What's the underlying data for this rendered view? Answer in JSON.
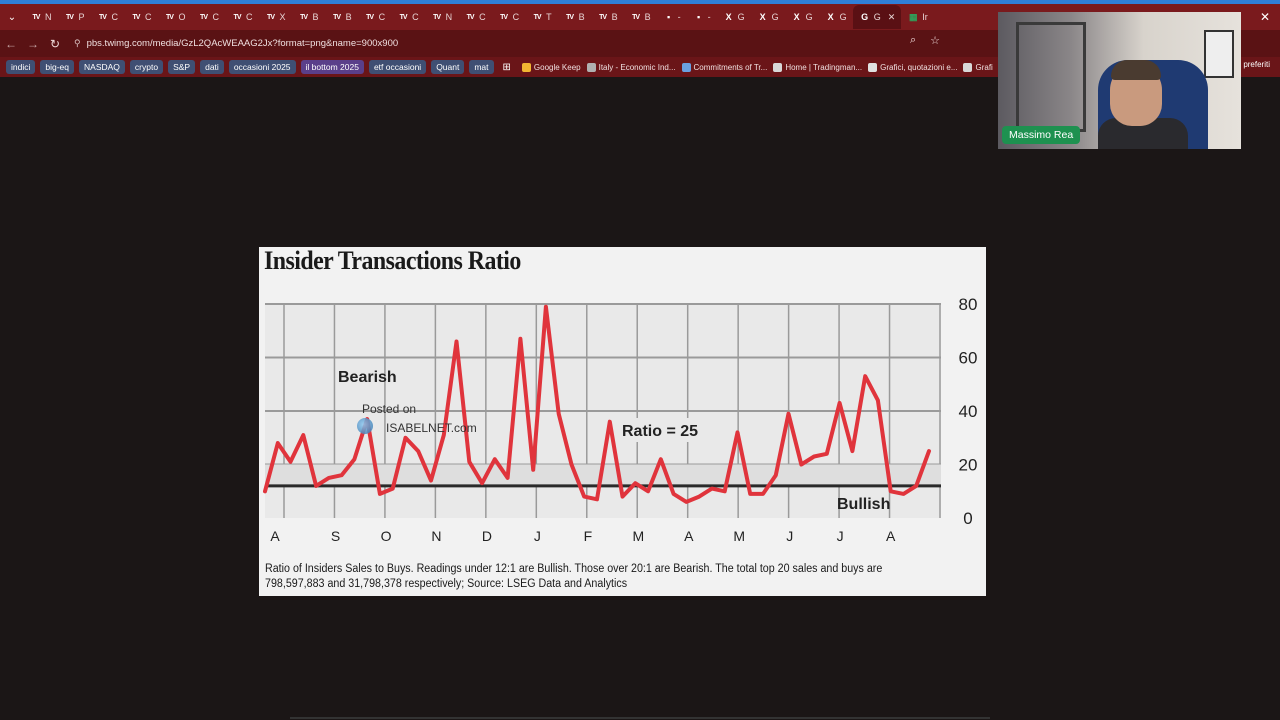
{
  "browser": {
    "tabs": [
      "N",
      "P",
      "C",
      "C",
      "O",
      "C",
      "C",
      "X",
      "B",
      "B",
      "C",
      "C",
      "N",
      "C",
      "C",
      "T",
      "B",
      "B",
      "B",
      "-",
      "-",
      "G",
      "G",
      "G",
      "G",
      "G",
      "Ir"
    ],
    "tab_icons": [
      "tv",
      "tv",
      "tv",
      "tv",
      "tv",
      "tv",
      "tv",
      "tv",
      "tv",
      "tv",
      "tv",
      "tv",
      "tv",
      "tv",
      "tv",
      "tv",
      "tv",
      "tv",
      "tv",
      "img",
      "img",
      "x",
      "x",
      "x",
      "x",
      "g",
      "sheet"
    ],
    "active_tab_index": 25,
    "url": "pbs.twimg.com/media/GzL2QAcWEAAG2Jx?format=png&name=900x900",
    "bookmark_folders": [
      "indici",
      "big-eq",
      "NASDAQ",
      "crypto",
      "S&P",
      "dati",
      "occasioni 2025",
      "il bottom 2025",
      "etf occasioni",
      "Quant",
      "mat"
    ],
    "bookmark_links": [
      "Google Keep",
      "Italy - Economic Ind...",
      "Commitments of Tr...",
      "Home | Tradingman...",
      "Grafici, quotazioni e...",
      "Grafi"
    ],
    "bookmarks_right": "preferiti"
  },
  "webcam": {
    "name": "Massimo Rea"
  },
  "chart_image": {
    "title": "Insider Transactions Ratio",
    "caption": "Ratio of Insiders Sales to Buys. Readings under 12:1 are Bullish. Those over 20:1 are Bearish. The total top 20 sales and buys are 798,597,883 and 31,798,378 respectively; Source: LSEG Data and Analytics",
    "watermark_line1": "Posted on",
    "watermark_line2": "ISABELNET.com"
  },
  "chart_data": {
    "type": "line",
    "title": "Insider Transactions Ratio",
    "xlabel": "",
    "ylabel": "",
    "ylim": [
      0,
      80
    ],
    "yticks": [
      0,
      20,
      40,
      60,
      80
    ],
    "x_month_labels": [
      "A",
      "S",
      "O",
      "N",
      "D",
      "J",
      "F",
      "M",
      "A",
      "M",
      "J",
      "J",
      "A"
    ],
    "grid": true,
    "series": [
      {
        "name": "",
        "color": "#e0343c",
        "values": [
          10,
          28,
          21,
          31,
          12,
          15,
          16,
          22,
          37,
          9,
          11,
          30,
          25,
          14,
          31,
          66,
          21,
          13,
          22,
          15,
          67,
          18,
          79,
          39,
          20,
          8,
          7,
          36,
          8,
          13,
          10,
          22,
          9,
          6,
          8,
          11,
          10,
          32,
          9,
          9,
          16,
          39,
          20,
          23,
          24,
          43,
          25,
          53,
          44,
          10,
          9,
          12,
          25
        ]
      }
    ],
    "reference_line": {
      "value": 12
    },
    "annotations": {
      "bearish": "Bearish",
      "bullish": "Bullish",
      "ratio": "Ratio = 25"
    }
  }
}
